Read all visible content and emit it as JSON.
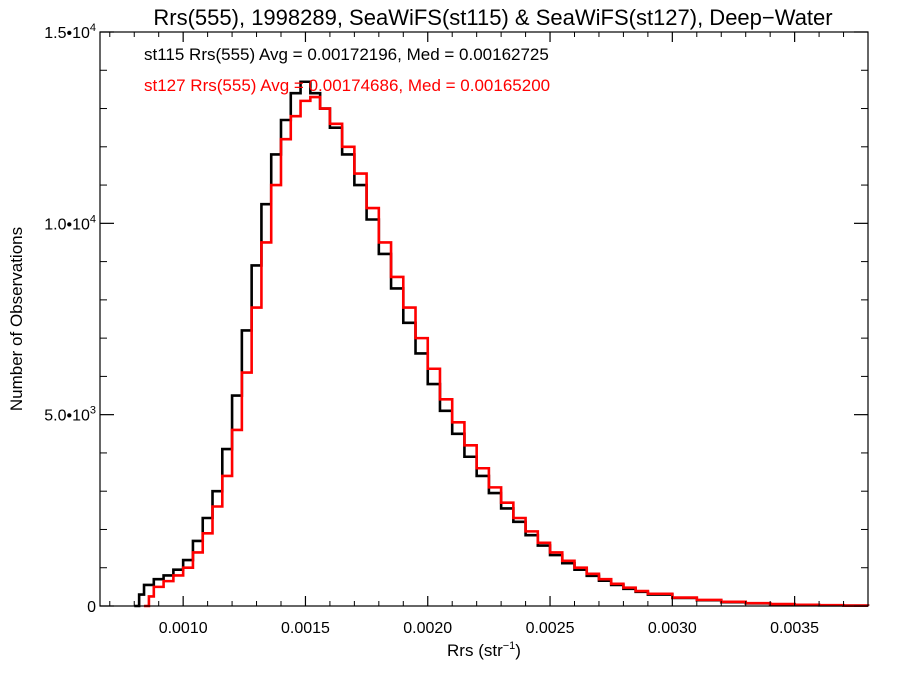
{
  "chart_data": {
    "type": "line",
    "step": true,
    "title": "Rrs(555), 1998289, SeaWiFS(st115) & SeaWiFS(st127), Deep−Water",
    "xlabel": "Rrs (str",
    "xlabel_sup": "−1",
    "xlabel_close": ")",
    "ylabel": "Number of Observations",
    "xlim": [
      0.00066,
      0.0038
    ],
    "ylim": [
      0,
      15000
    ],
    "grid": false,
    "x_ticks": [
      {
        "value": 0.001,
        "label": "0.0010"
      },
      {
        "value": 0.0015,
        "label": "0.0015"
      },
      {
        "value": 0.002,
        "label": "0.0020"
      },
      {
        "value": 0.0025,
        "label": "0.0025"
      },
      {
        "value": 0.003,
        "label": "0.0030"
      },
      {
        "value": 0.0035,
        "label": "0.0035"
      }
    ],
    "y_ticks": [
      {
        "value": 0,
        "mantissa": "0",
        "exp": ""
      },
      {
        "value": 5000,
        "mantissa": "5.0•10",
        "exp": "3"
      },
      {
        "value": 10000,
        "mantissa": "1.0•10",
        "exp": "4"
      },
      {
        "value": 15000,
        "mantissa": "1.5•10",
        "exp": "4"
      }
    ],
    "annotations": [
      {
        "text": "st115 Rrs(555) Avg = 0.00172196, Med = 0.00162725",
        "color": "#000000"
      },
      {
        "text": "st127 Rrs(555) Avg = 0.00174686, Med = 0.00165200",
        "color": "#ff0000"
      }
    ],
    "series": [
      {
        "name": "st115",
        "color": "#000000",
        "points": [
          [
            0.0008,
            0
          ],
          [
            0.00082,
            300
          ],
          [
            0.00084,
            550
          ],
          [
            0.00088,
            700
          ],
          [
            0.00092,
            800
          ],
          [
            0.00096,
            950
          ],
          [
            0.001,
            1200
          ],
          [
            0.00104,
            1700
          ],
          [
            0.00108,
            2300
          ],
          [
            0.00112,
            3000
          ],
          [
            0.00116,
            4100
          ],
          [
            0.0012,
            5500
          ],
          [
            0.00124,
            7200
          ],
          [
            0.00128,
            8900
          ],
          [
            0.00132,
            10500
          ],
          [
            0.00136,
            11800
          ],
          [
            0.0014,
            12700
          ],
          [
            0.00144,
            13400
          ],
          [
            0.00148,
            13700
          ],
          [
            0.00152,
            13400
          ],
          [
            0.00156,
            13000
          ],
          [
            0.0016,
            12500
          ],
          [
            0.00165,
            11800
          ],
          [
            0.0017,
            11000
          ],
          [
            0.00175,
            10100
          ],
          [
            0.0018,
            9200
          ],
          [
            0.00185,
            8300
          ],
          [
            0.0019,
            7400
          ],
          [
            0.00195,
            6600
          ],
          [
            0.002,
            5800
          ],
          [
            0.00205,
            5100
          ],
          [
            0.0021,
            4500
          ],
          [
            0.00215,
            3900
          ],
          [
            0.0022,
            3400
          ],
          [
            0.00225,
            2950
          ],
          [
            0.0023,
            2550
          ],
          [
            0.00235,
            2200
          ],
          [
            0.0024,
            1850
          ],
          [
            0.00245,
            1580
          ],
          [
            0.0025,
            1330
          ],
          [
            0.00255,
            1120
          ],
          [
            0.0026,
            950
          ],
          [
            0.00265,
            790
          ],
          [
            0.0027,
            660
          ],
          [
            0.00275,
            550
          ],
          [
            0.0028,
            450
          ],
          [
            0.00285,
            370
          ],
          [
            0.0029,
            300
          ],
          [
            0.003,
            210
          ],
          [
            0.0031,
            150
          ],
          [
            0.0032,
            100
          ],
          [
            0.0033,
            70
          ],
          [
            0.0034,
            45
          ],
          [
            0.0035,
            30
          ],
          [
            0.0036,
            18
          ],
          [
            0.0037,
            10
          ],
          [
            0.0038,
            5
          ]
        ]
      },
      {
        "name": "st127",
        "color": "#ff0000",
        "points": [
          [
            0.00084,
            0
          ],
          [
            0.00086,
            250
          ],
          [
            0.00088,
            500
          ],
          [
            0.00092,
            650
          ],
          [
            0.00096,
            800
          ],
          [
            0.001,
            1000
          ],
          [
            0.00104,
            1400
          ],
          [
            0.00108,
            1900
          ],
          [
            0.00112,
            2600
          ],
          [
            0.00116,
            3400
          ],
          [
            0.0012,
            4600
          ],
          [
            0.00124,
            6100
          ],
          [
            0.00128,
            7800
          ],
          [
            0.00132,
            9500
          ],
          [
            0.00136,
            11000
          ],
          [
            0.0014,
            12200
          ],
          [
            0.00144,
            12800
          ],
          [
            0.00148,
            13200
          ],
          [
            0.00152,
            13300
          ],
          [
            0.00156,
            13000
          ],
          [
            0.0016,
            12600
          ],
          [
            0.00165,
            12000
          ],
          [
            0.0017,
            11300
          ],
          [
            0.00175,
            10400
          ],
          [
            0.0018,
            9500
          ],
          [
            0.00185,
            8600
          ],
          [
            0.0019,
            7800
          ],
          [
            0.00195,
            7000
          ],
          [
            0.002,
            6200
          ],
          [
            0.00205,
            5400
          ],
          [
            0.0021,
            4800
          ],
          [
            0.00215,
            4200
          ],
          [
            0.0022,
            3600
          ],
          [
            0.00225,
            3100
          ],
          [
            0.0023,
            2700
          ],
          [
            0.00235,
            2300
          ],
          [
            0.0024,
            1950
          ],
          [
            0.00245,
            1650
          ],
          [
            0.0025,
            1400
          ],
          [
            0.00255,
            1180
          ],
          [
            0.0026,
            1000
          ],
          [
            0.00265,
            840
          ],
          [
            0.0027,
            700
          ],
          [
            0.00275,
            580
          ],
          [
            0.0028,
            480
          ],
          [
            0.00285,
            390
          ],
          [
            0.0029,
            320
          ],
          [
            0.003,
            220
          ],
          [
            0.0031,
            160
          ],
          [
            0.0032,
            110
          ],
          [
            0.0033,
            75
          ],
          [
            0.0034,
            50
          ],
          [
            0.0035,
            32
          ],
          [
            0.0036,
            20
          ],
          [
            0.0037,
            12
          ],
          [
            0.0038,
            6
          ]
        ]
      }
    ]
  }
}
